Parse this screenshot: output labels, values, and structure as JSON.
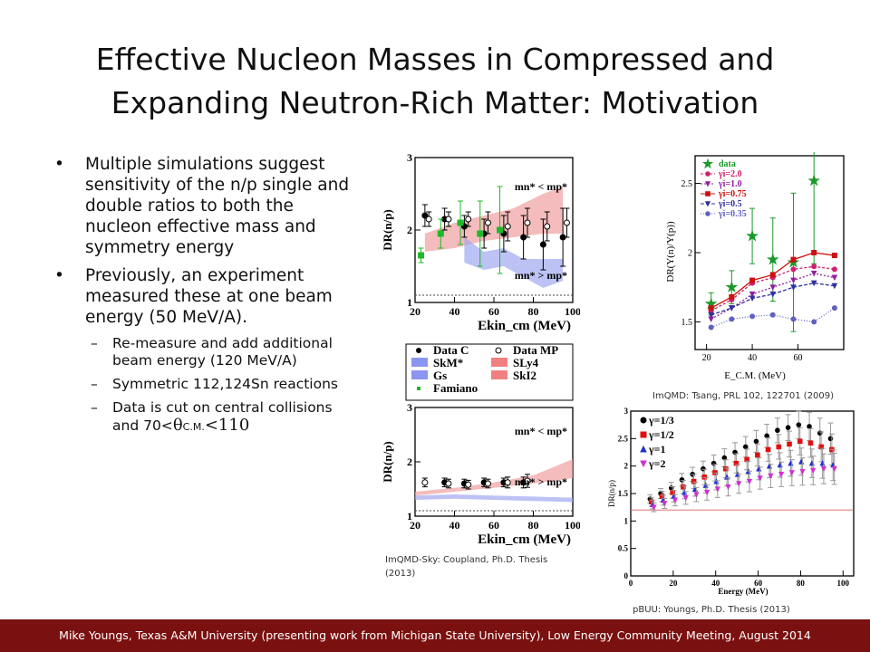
{
  "slide": {
    "title_line1": "Effective Nucleon Masses in Compressed and",
    "title_line2": "Expanding Neutron-Rich Matter: Motivation",
    "bullets": [
      "Multiple simulations suggest sensitivity of the n/p single and double ratios to both the nucleon effective mass and symmetry energy",
      "Previously, an experiment measured these at one beam energy (50 MeV/A)."
    ],
    "subbullets": [
      "Re-measure and add additional beam energy (120 MeV/A)",
      "Symmetric 112,124Sn reactions"
    ],
    "sub3": {
      "prefix": "Data is cut on central collisions and 70<",
      "theta": "θ",
      "subscript": "C.M.",
      "suffix": "<110"
    },
    "footer": "Mike Youngs, Texas A&M University (presenting work from Michigan State University), Low Energy Community Meeting, August 2014",
    "captions": {
      "imqmd_sky": "ImQMD-Sky: Coupland, Ph.D. Thesis (2013)",
      "imqmd_tsang": "ImQMD: Tsang, PRL 102, 122701 (2009)",
      "pbuu": "pBUU: Youngs, Ph.D. Thesis (2013)"
    }
  },
  "chart_data": [
    {
      "id": "coupland_top",
      "type": "scatter",
      "ylabel": "DR(n/p)",
      "xlabel": "Ekin_cm (MeV)",
      "xticks": [
        20,
        40,
        60,
        80,
        100
      ],
      "yticks": [
        1,
        2,
        3
      ],
      "xlim": [
        20,
        100
      ],
      "ylim": [
        1,
        3
      ],
      "annot_upper": "mn* < mp*",
      "annot_lower": "mn* > mp*",
      "band_upper": {
        "color": "#f0a0a0",
        "x": [
          25,
          40,
          55,
          70,
          85,
          95
        ],
        "lo": [
          1.7,
          1.75,
          1.85,
          1.9,
          1.95,
          1.95
        ],
        "hi": [
          1.95,
          2.1,
          2.2,
          2.3,
          2.5,
          2.6
        ]
      },
      "band_lower": {
        "color": "#a0a8f0",
        "x": [
          45,
          55,
          65,
          75,
          85,
          95
        ],
        "lo": [
          1.55,
          1.45,
          1.5,
          1.35,
          1.2,
          1.3
        ],
        "hi": [
          1.9,
          1.7,
          1.75,
          1.6,
          1.6,
          1.6
        ]
      },
      "series": [
        {
          "name": "Data C",
          "x": [
            25,
            35,
            45,
            55,
            65,
            75,
            85,
            95
          ],
          "y": [
            2.2,
            2.15,
            2.05,
            1.95,
            1.95,
            1.9,
            1.8,
            1.9
          ],
          "err": [
            0.15,
            0.15,
            0.15,
            0.2,
            0.25,
            0.3,
            0.35,
            0.4
          ]
        },
        {
          "name": "Data MP",
          "x": [
            27,
            37,
            47,
            57,
            67,
            77,
            87,
            97
          ],
          "y": [
            2.15,
            2.15,
            2.15,
            2.1,
            2.05,
            2.1,
            2.05,
            2.1
          ],
          "err": [
            0.1,
            0.1,
            0.1,
            0.15,
            0.2,
            0.2,
            0.2,
            0.2
          ]
        },
        {
          "name": "Famiano",
          "x": [
            23,
            33,
            43,
            53,
            63
          ],
          "y": [
            1.65,
            1.95,
            2.1,
            1.95,
            2.0
          ],
          "err": [
            0.1,
            0.2,
            0.3,
            0.45,
            0.6
          ]
        }
      ]
    },
    {
      "id": "coupland_bottom",
      "type": "scatter",
      "ylabel": "DR(n/p)",
      "xlabel": "Ekin_cm (MeV)",
      "xticks": [
        20,
        40,
        60,
        80,
        100
      ],
      "yticks": [
        1,
        2,
        3
      ],
      "xlim": [
        20,
        100
      ],
      "ylim": [
        1,
        3
      ],
      "annot_upper": "mn* < mp*",
      "annot_lower": "mn* > mp*",
      "legend": [
        "Data C",
        "Data MP",
        "SkM*",
        "SLy4",
        "Gs",
        "SkI2",
        "Famiano"
      ],
      "band_upper": {
        "color": "#f0a0a0",
        "x": [
          20,
          40,
          60,
          80,
          100
        ],
        "lo": [
          1.38,
          1.45,
          1.52,
          1.6,
          1.7
        ],
        "hi": [
          1.45,
          1.52,
          1.62,
          1.75,
          2.05
        ]
      },
      "band_lower": {
        "color": "#a0a8f0",
        "x": [
          20,
          40,
          60,
          80,
          100
        ],
        "lo": [
          1.3,
          1.32,
          1.3,
          1.28,
          1.26
        ],
        "hi": [
          1.38,
          1.4,
          1.38,
          1.36,
          1.34
        ]
      },
      "series": [
        {
          "name": "Data C",
          "x": [
            35,
            45,
            55,
            65,
            75
          ],
          "y": [
            1.62,
            1.6,
            1.62,
            1.62,
            1.62
          ],
          "err": [
            0.08,
            0.08,
            0.08,
            0.08,
            0.1
          ]
        },
        {
          "name": "Data MP",
          "x": [
            25,
            37,
            47,
            57,
            67,
            77
          ],
          "y": [
            1.62,
            1.6,
            1.58,
            1.6,
            1.62,
            1.65
          ],
          "err": [
            0.08,
            0.08,
            0.08,
            0.08,
            0.1,
            0.12
          ]
        }
      ]
    },
    {
      "id": "imqmd_tsang",
      "type": "line",
      "ylabel": "DR(Y(n)/Y(p))",
      "xlabel": "E_C.M. (MeV)",
      "xticks": [
        20,
        40,
        60
      ],
      "yticks": [
        1.5,
        2.0,
        2.5
      ],
      "xlim": [
        15,
        80
      ],
      "ylim": [
        1.3,
        2.7
      ],
      "series": [
        {
          "name": "data",
          "color": "#1a9a2a",
          "x": [
            22,
            31,
            40,
            49,
            58,
            67
          ],
          "y": [
            1.63,
            1.75,
            2.12,
            1.95,
            1.93,
            2.52
          ],
          "err": [
            0.08,
            0.12,
            0.2,
            0.3,
            0.5,
            0.6
          ]
        },
        {
          "name": "γi=2.0",
          "color": "#d02070",
          "x": [
            22,
            31,
            40,
            49,
            58,
            67,
            76
          ],
          "y": [
            1.58,
            1.66,
            1.78,
            1.82,
            1.88,
            1.9,
            1.88
          ]
        },
        {
          "name": "γi=1.0",
          "color": "#9020a0",
          "x": [
            22,
            31,
            40,
            49,
            58,
            67,
            76
          ],
          "y": [
            1.52,
            1.6,
            1.7,
            1.75,
            1.8,
            1.85,
            1.82
          ]
        },
        {
          "name": "γi=0.75",
          "color": "#cc1010",
          "x": [
            22,
            31,
            40,
            49,
            58,
            67,
            76
          ],
          "y": [
            1.6,
            1.68,
            1.8,
            1.84,
            1.95,
            2.0,
            1.98
          ]
        },
        {
          "name": "γi=0.5",
          "color": "#3030a0",
          "x": [
            22,
            31,
            40,
            49,
            58,
            67,
            76
          ],
          "y": [
            1.55,
            1.6,
            1.67,
            1.7,
            1.75,
            1.78,
            1.76
          ]
        },
        {
          "name": "γi=0.35",
          "color": "#6060c0",
          "x": [
            22,
            31,
            40,
            49,
            58,
            67,
            76
          ],
          "y": [
            1.46,
            1.52,
            1.54,
            1.55,
            1.52,
            1.5,
            1.6
          ]
        }
      ]
    },
    {
      "id": "pbuu_youngs",
      "type": "scatter",
      "ylabel": "DR(n/p)",
      "xlabel": "Energy (MeV)",
      "xticks": [
        0,
        20,
        40,
        60,
        80,
        100
      ],
      "yticks": [
        0,
        0.5,
        1,
        1.5,
        2,
        2.5,
        3
      ],
      "xlim": [
        0,
        105
      ],
      "ylim": [
        0,
        3
      ],
      "refline_y": 1.2,
      "series": [
        {
          "name": "γ=1/3",
          "color": "#000000",
          "x": [
            10,
            15,
            20,
            25,
            30,
            35,
            40,
            45,
            50,
            55,
            60,
            65,
            70,
            75,
            80,
            85,
            90,
            95
          ],
          "y": [
            1.4,
            1.5,
            1.6,
            1.75,
            1.85,
            1.95,
            2.05,
            2.15,
            2.25,
            2.35,
            2.45,
            2.55,
            2.65,
            2.7,
            2.75,
            2.72,
            2.6,
            2.5
          ]
        },
        {
          "name": "γ=1/2",
          "color": "#e01010",
          "x": [
            10,
            15,
            20,
            25,
            30,
            35,
            40,
            45,
            50,
            55,
            60,
            65,
            70,
            75,
            80,
            85,
            90,
            95
          ],
          "y": [
            1.35,
            1.45,
            1.52,
            1.62,
            1.72,
            1.8,
            1.88,
            1.95,
            2.05,
            2.12,
            2.2,
            2.3,
            2.35,
            2.4,
            2.45,
            2.42,
            2.35,
            2.3
          ]
        },
        {
          "name": "γ=1",
          "color": "#2030d0",
          "x": [
            10,
            15,
            20,
            25,
            30,
            35,
            40,
            45,
            50,
            55,
            60,
            65,
            70,
            75,
            80,
            85,
            90,
            95
          ],
          "y": [
            1.3,
            1.38,
            1.45,
            1.52,
            1.58,
            1.65,
            1.72,
            1.8,
            1.85,
            1.9,
            1.95,
            2.0,
            2.02,
            2.05,
            2.08,
            2.05,
            2.05,
            2.02
          ]
        },
        {
          "name": "γ=2",
          "color": "#d030d0",
          "x": [
            10,
            15,
            20,
            25,
            30,
            35,
            40,
            45,
            50,
            55,
            60,
            65,
            70,
            75,
            80,
            85,
            90,
            95
          ],
          "y": [
            1.25,
            1.32,
            1.38,
            1.42,
            1.48,
            1.52,
            1.58,
            1.62,
            1.68,
            1.72,
            1.78,
            1.82,
            1.85,
            1.88,
            1.9,
            1.92,
            1.95,
            1.95
          ]
        }
      ]
    }
  ]
}
